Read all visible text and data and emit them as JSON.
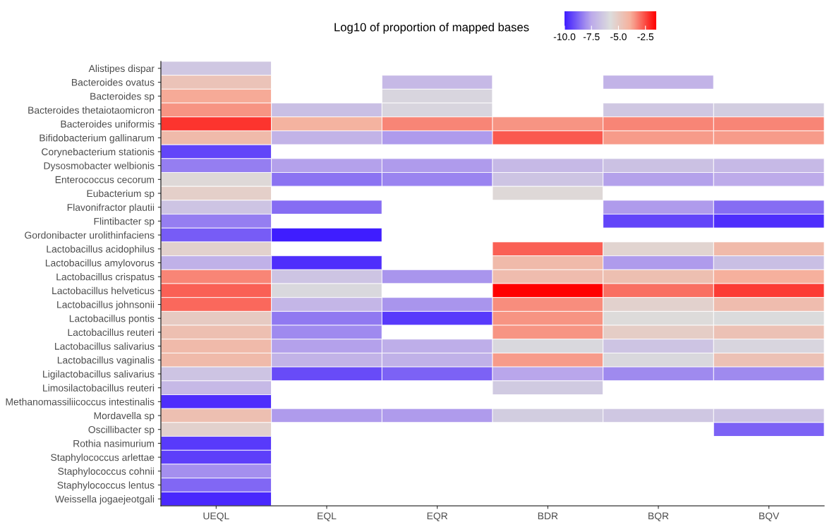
{
  "chart_data": {
    "type": "heatmap",
    "clabel": "Log10 of proportion of mapped bases",
    "categories": [
      "UEQL",
      "EQL",
      "EQR",
      "BDR",
      "BQR",
      "BQV"
    ],
    "y_categories": [
      "Alistipes dispar",
      "Bacteroides ovatus",
      "Bacteroides sp",
      "Bacteroides thetaiotaomicron",
      "Bacteroides uniformis",
      "Bifidobacterium gallinarum",
      "Corynebacterium stationis",
      "Dysosmobacter welbionis",
      "Enterococcus cecorum",
      "Eubacterium sp",
      "Flavonifractor plautii",
      "Flintibacter sp",
      "Gordonibacter urolithinfaciens",
      "Lactobacillus acidophilus",
      "Lactobacillus amylovorus",
      "Lactobacillus crispatus",
      "Lactobacillus helveticus",
      "Lactobacillus johnsonii",
      "Lactobacillus pontis",
      "Lactobacillus reuteri",
      "Lactobacillus salivarius",
      "Lactobacillus vaginalis",
      "Ligilactobacillus salivarius",
      "Limosilactobacillus reuteri",
      "Methanomassiliicoccus intestinalis",
      "Mordavella sp",
      "Oscillibacter sp",
      "Rothia nasimurium",
      "Staphylococcus arlettae",
      "Staphylococcus cohnii",
      "Staphylococcus lentus",
      "Weissella jogaejeotgali"
    ],
    "cells": [
      [
        -6.5,
        null,
        null,
        null,
        null,
        null
      ],
      [
        -4.7,
        null,
        -7.0,
        null,
        -7.2,
        null
      ],
      [
        -3.8,
        null,
        -6.0,
        null,
        null,
        null
      ],
      [
        -3.5,
        -6.8,
        -6.0,
        null,
        -6.5,
        -6.3
      ],
      [
        -2.2,
        -4.0,
        -3.3,
        -3.5,
        -3.3,
        -3.3
      ],
      [
        -4.3,
        -7.2,
        -7.8,
        -2.7,
        -3.6,
        -3.6
      ],
      [
        -9.3,
        null,
        null,
        null,
        null,
        null
      ],
      [
        -8.3,
        -7.7,
        -7.8,
        -7.0,
        -6.7,
        -7.0
      ],
      [
        -5.6,
        -8.5,
        -8.2,
        -6.6,
        -7.7,
        -7.5
      ],
      [
        -5.2,
        null,
        null,
        -5.6,
        null,
        null
      ],
      [
        -6.6,
        -8.6,
        null,
        null,
        -7.8,
        -8.6
      ],
      [
        -8.3,
        null,
        null,
        null,
        -9.3,
        -9.7
      ],
      [
        -8.9,
        -10.0,
        null,
        null,
        null,
        null
      ],
      [
        -5.3,
        null,
        null,
        -2.8,
        -5.4,
        -4.3
      ],
      [
        -7.3,
        -9.7,
        null,
        -4.3,
        -7.8,
        -6.8
      ],
      [
        -3.3,
        -6.6,
        -7.9,
        -4.4,
        -4.5,
        -3.9
      ],
      [
        -2.8,
        -5.9,
        null,
        -1.5,
        -3.0,
        -2.3
      ],
      [
        -2.9,
        -7.1,
        -7.9,
        -3.4,
        -5.3,
        -4.4
      ],
      [
        -5.0,
        -8.4,
        -9.5,
        -3.5,
        -5.7,
        -5.8
      ],
      [
        -4.5,
        -8.1,
        null,
        -3.5,
        -5.1,
        -4.6
      ],
      [
        -4.3,
        -7.7,
        -7.4,
        -5.9,
        -6.6,
        -6.0
      ],
      [
        -4.3,
        -7.2,
        -7.3,
        -3.6,
        -5.9,
        -4.6
      ],
      [
        -6.6,
        -9.2,
        -8.8,
        -7.6,
        -8.1,
        -8.1
      ],
      [
        -7.0,
        null,
        null,
        -6.4,
        null,
        null
      ],
      [
        -9.7,
        null,
        null,
        null,
        null,
        null
      ],
      [
        -4.5,
        -7.8,
        -7.8,
        -6.3,
        -6.5,
        -6.6
      ],
      [
        -5.3,
        null,
        null,
        null,
        null,
        -8.8
      ],
      [
        -9.5,
        null,
        null,
        null,
        null,
        null
      ],
      [
        -9.4,
        null,
        null,
        null,
        null,
        null
      ],
      [
        -8.0,
        null,
        null,
        null,
        null,
        null
      ],
      [
        -8.7,
        null,
        null,
        null,
        null,
        null
      ],
      [
        -9.8,
        null,
        null,
        null,
        null,
        null
      ]
    ],
    "clim": [
      -10.0,
      -1.5
    ],
    "cticks": [
      {
        "value": -10,
        "label": "-10.0"
      },
      {
        "value": -7.5,
        "label": "-7.5"
      },
      {
        "value": -5,
        "label": "-5.0"
      },
      {
        "value": -2.5,
        "label": "-2.5"
      }
    ],
    "grid": false
  }
}
